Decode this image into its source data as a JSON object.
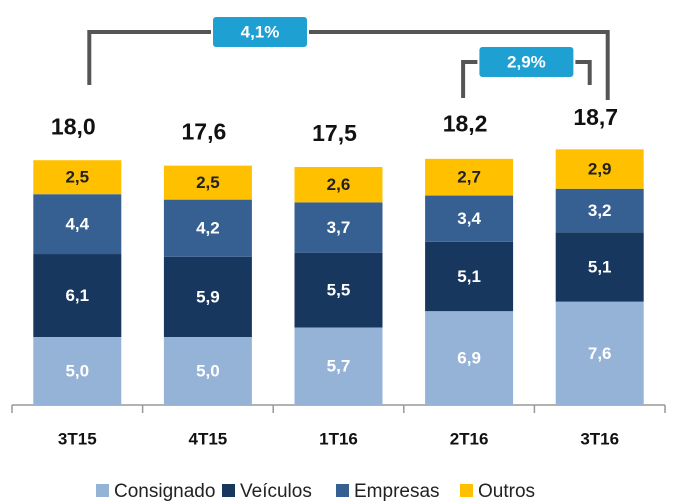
{
  "chart_data": {
    "type": "stacked_bar",
    "categories": [
      "3T15",
      "4T15",
      "1T16",
      "2T16",
      "3T16"
    ],
    "series": [
      {
        "name": "Consignado",
        "color": "#95b3d7",
        "values": [
          5.0,
          5.0,
          5.7,
          6.9,
          7.6
        ],
        "value_labels": [
          "5,0",
          "5,0",
          "5,7",
          "6,9",
          "7,6"
        ]
      },
      {
        "name": "Veículos",
        "color": "#17375e",
        "values": [
          6.1,
          5.9,
          5.5,
          5.1,
          5.1
        ],
        "value_labels": [
          "6,1",
          "5,9",
          "5,5",
          "5,1",
          "5,1"
        ]
      },
      {
        "name": "Empresas",
        "color": "#376092",
        "values": [
          4.4,
          4.2,
          3.7,
          3.4,
          3.2
        ],
        "value_labels": [
          "4,4",
          "4,2",
          "3,7",
          "3,4",
          "3,2"
        ]
      },
      {
        "name": "Outros",
        "color": "#ffc000",
        "values": [
          2.5,
          2.5,
          2.6,
          2.7,
          2.9
        ],
        "value_labels": [
          "2,5",
          "2,5",
          "2,6",
          "2,7",
          "2,9"
        ]
      }
    ],
    "totals": [
      18.0,
      17.6,
      17.5,
      18.2,
      18.7
    ],
    "total_labels": [
      "18,0",
      "17,6",
      "17,5",
      "18,2",
      "18,7"
    ],
    "annotations": [
      {
        "text": "4,1%",
        "from": "3T15",
        "to": "3T16"
      },
      {
        "text": "2,9%",
        "from": "2T16",
        "to": "3T16"
      }
    ]
  }
}
